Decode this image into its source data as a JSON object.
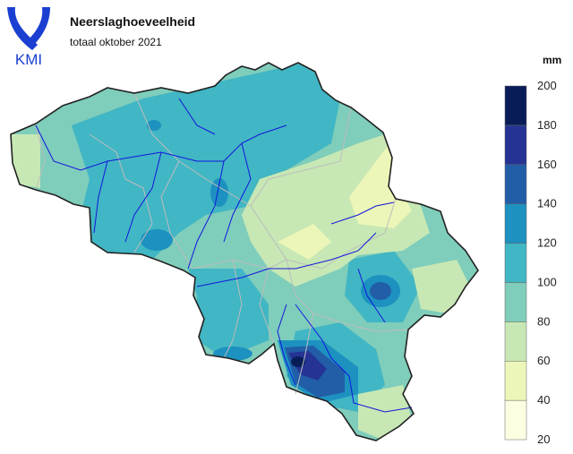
{
  "header": {
    "logo_text": "KMI",
    "title": "Neerslaghoeveelheid",
    "subtitle": "totaal oktober 2021"
  },
  "legend": {
    "unit": "mm",
    "breaks": [
      20,
      40,
      60,
      80,
      100,
      120,
      140,
      160,
      180,
      200
    ],
    "colors": [
      "#fdfde2",
      "#ecf6b8",
      "#c7e8b4",
      "#7fcdbb",
      "#41b6c4",
      "#1d91c0",
      "#225ea8",
      "#253494",
      "#081d58"
    ]
  },
  "map": {
    "region": "Belgium",
    "colors": {
      "border": "#222222",
      "province": "#bdbdbd",
      "river": "#1515dd"
    }
  }
}
